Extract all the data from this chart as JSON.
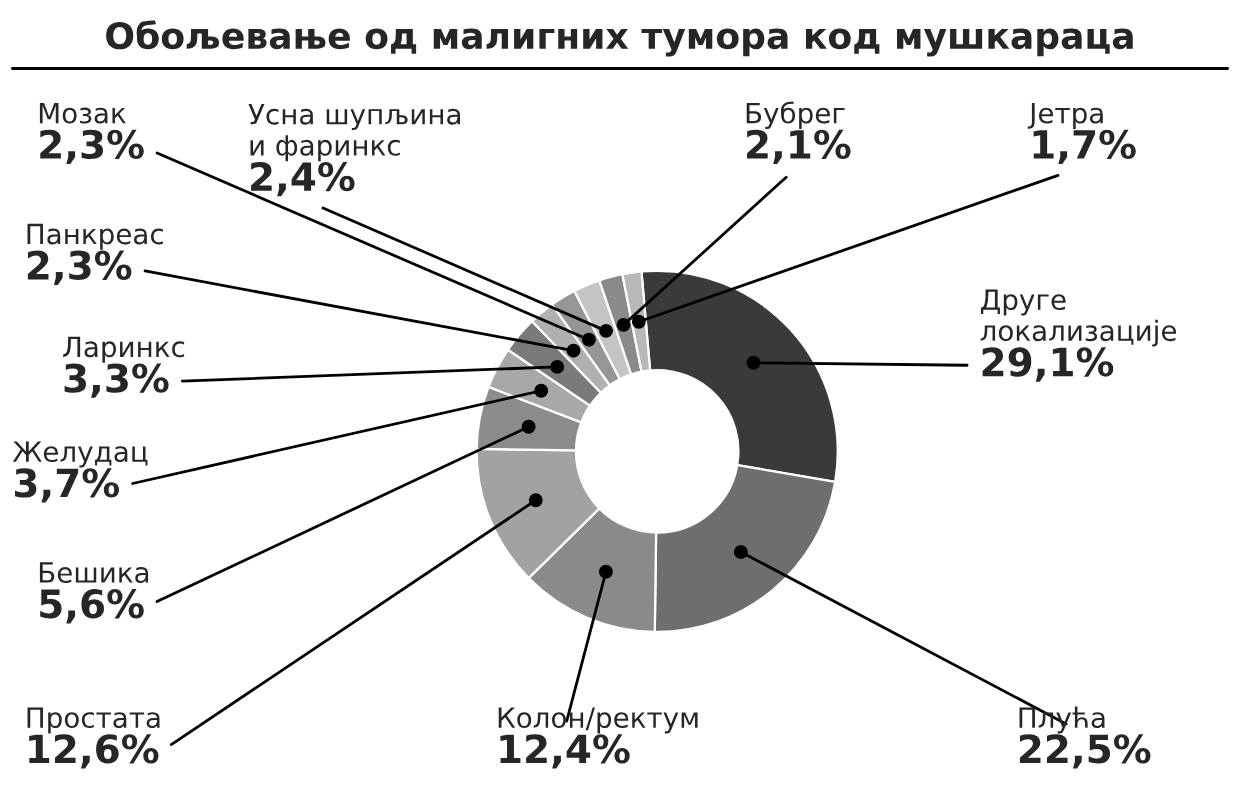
{
  "chart_data": {
    "type": "donut",
    "title": "Обољевање од малигних тумора код мушкараца",
    "categories": [
      "Друге\nлокализације",
      "Плућа",
      "Колон/ректум",
      "Простата",
      "Бешика",
      "Желудац",
      "Ларинкс",
      "Панкреас",
      "Мозак",
      "Усна шупљина\nи фаринкс",
      "Бубрег",
      "Јетра"
    ],
    "values": [
      29.1,
      22.5,
      12.4,
      12.6,
      5.6,
      3.7,
      3.3,
      2.3,
      2.3,
      2.4,
      2.1,
      1.7
    ],
    "value_labels": [
      "29,1%",
      "22,5%",
      "12,4%",
      "12,6%",
      "5,6%",
      "3,7%",
      "3,3%",
      "2,3%",
      "2,3%",
      "2,4%",
      "2,1%",
      "1,7%"
    ],
    "colors": [
      "#3a3a3a",
      "#6e6e6e",
      "#8a8a8a",
      "#a2a2a2",
      "#8c8c8c",
      "#a8a8a8",
      "#7a7a7a",
      "#b0b0b0",
      "#969696",
      "#c4c4c4",
      "#8a8a8a",
      "#b8b8b8"
    ],
    "legend": false
  }
}
